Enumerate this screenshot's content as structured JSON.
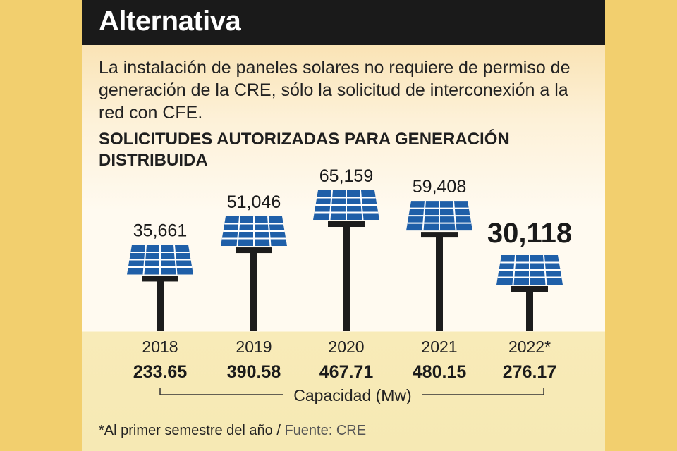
{
  "header": {
    "title": "Alternativa"
  },
  "intro": "La instalación de paneles solares no requiere de permiso de generación de la CRE, sólo la solicitud de interconexión a la red con CFE.",
  "chart_title_lines": [
    "SOLICITUDES AUTORIZADAS PARA GENERACIÓN",
    "DISTRIBUIDA"
  ],
  "chart_data": {
    "type": "bar",
    "title": "SOLICITUDES AUTORIZADAS PARA GENERACIÓN DISTRIBUIDA",
    "categories": [
      "2018",
      "2019",
      "2020",
      "2021",
      "2022*"
    ],
    "series": [
      {
        "name": "Solicitudes autorizadas",
        "values": [
          35661,
          51046,
          65159,
          59408,
          30118
        ]
      },
      {
        "name": "Capacidad (Mw)",
        "values": [
          233.65,
          390.58,
          467.71,
          480.15,
          276.17
        ]
      }
    ],
    "value_labels": [
      "35,661",
      "51,046",
      "65,159",
      "59,408",
      "30,118"
    ],
    "capacity_labels": [
      "233.65",
      "390.58",
      "467.71",
      "480.15",
      "276.17"
    ],
    "capacity_axis_label": "Capacidad (Mw)",
    "highlight_index": 4,
    "colors": {
      "panel": "#1f5fa8",
      "cell_line": "#ffffff",
      "pole": "#1c1c1c"
    }
  },
  "footnote": {
    "note": "*Al primer semestre del año / ",
    "source": "Fuente: CRE"
  }
}
